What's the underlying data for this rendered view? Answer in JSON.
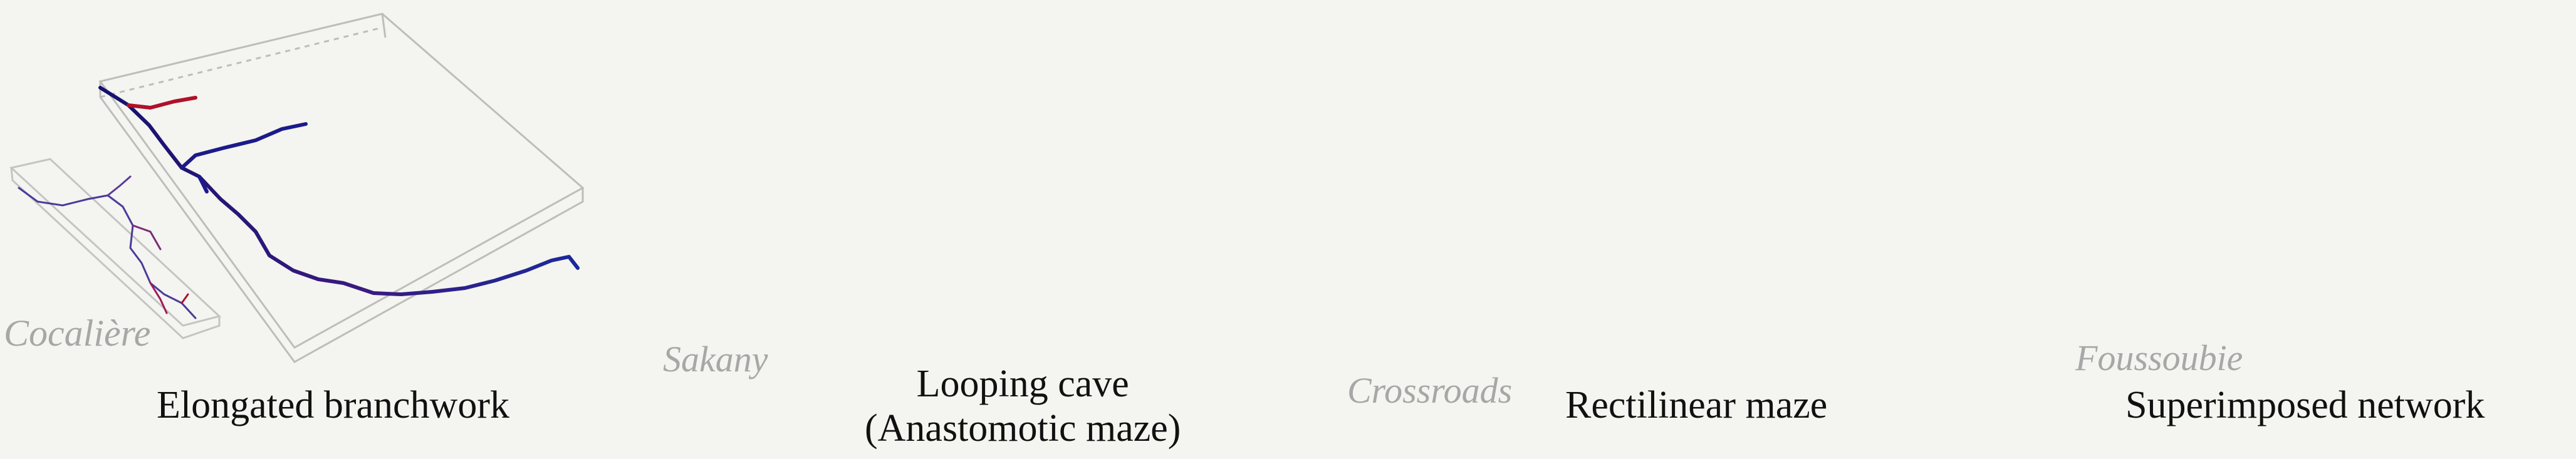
{
  "panels": [
    {
      "caption": [
        "Elongated branchwork"
      ],
      "cave_name": "Cocalière",
      "colors": [
        "#1c1a8a",
        "#b0102a"
      ]
    },
    {
      "caption": [
        "Looping cave",
        "(Anastomotic maze)"
      ],
      "cave_name": "Sakany",
      "colors": [
        "#2a1aa8",
        "#c01028"
      ]
    },
    {
      "caption": [
        "Rectilinear maze"
      ],
      "cave_name": "Crossroads",
      "colors": [
        "#2a2a9a",
        "#a01a3a"
      ]
    },
    {
      "caption": [
        "Superimposed network"
      ],
      "cave_name": "Foussoubie",
      "colors": [
        "#24249a",
        "#c01a1a"
      ]
    }
  ]
}
